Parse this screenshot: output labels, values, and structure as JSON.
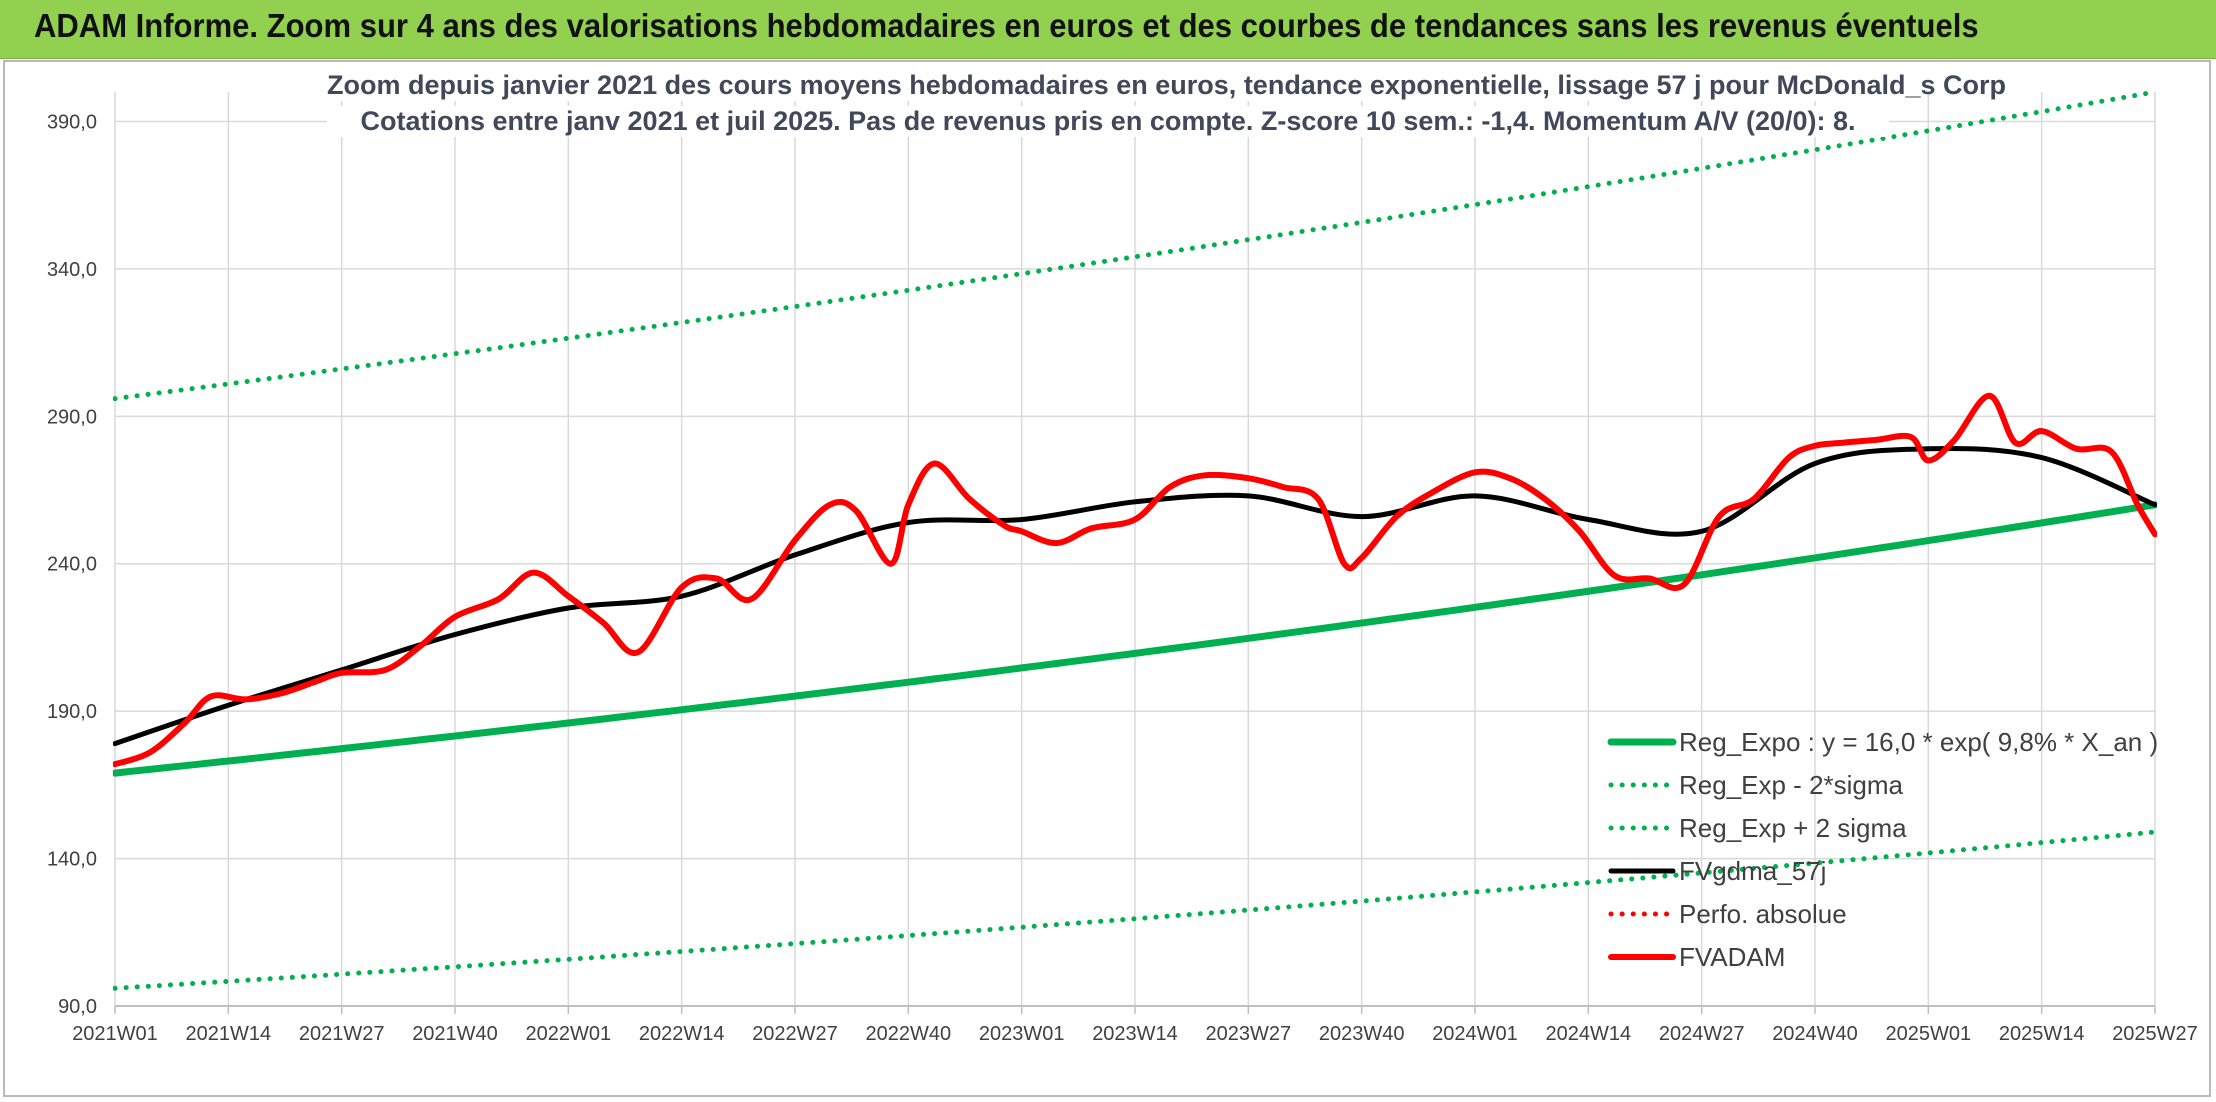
{
  "banner": {
    "title": "ADAM Informe. Zoom sur 4 ans des valorisations hebdomadaires en euros et des courbes de tendances sans les revenus éventuels"
  },
  "colors": {
    "banner_bg": "#92d050",
    "green": "#00b050",
    "black": "#000000",
    "red": "#ff0000",
    "grid": "#d9d9d9"
  },
  "chart_data": {
    "type": "line",
    "title": "Zoom depuis janvier 2021 des cours moyens hebdomadaires en euros, tendance exponentielle, lissage 57 j pour McDonald_s Corp",
    "subtitle": "Cotations entre janv 2021 et juil 2025. Pas de revenus pris en compte. Z-score 10 sem.: -1,4. Momentum A/V (20/0): 8.",
    "xlabel": "",
    "ylabel": "",
    "ylim": [
      90,
      400
    ],
    "y_ticks": [
      90,
      140,
      190,
      240,
      290,
      340,
      390
    ],
    "y_tick_labels": [
      "90,0",
      "140,0",
      "190,0",
      "240,0",
      "290,0",
      "340,0",
      "390,0"
    ],
    "x_range": [
      "2021W01",
      "2025W27"
    ],
    "x_tick_labels": [
      "2021W01",
      "2021W14",
      "2021W27",
      "2021W40",
      "2022W01",
      "2022W14",
      "2022W27",
      "2022W40",
      "2023W01",
      "2023W14",
      "2023W27",
      "2023W40",
      "2024W01",
      "2024W14",
      "2024W27",
      "2024W40",
      "2025W01",
      "2025W14",
      "2025W27"
    ],
    "grid": true,
    "legend_position": "bottom-right",
    "series": [
      {
        "name": "Reg_Expo : y = 16,0 * exp( 9,8% *  X_an )",
        "color": "#00b050",
        "style": "solid",
        "x": [
          "2021W01",
          "2025W27"
        ],
        "values": [
          169,
          260
        ],
        "curve": "exponential"
      },
      {
        "name": "Reg_Exp - 2*sigma",
        "color": "#00b050",
        "style": "dotted",
        "x": [
          "2021W01",
          "2025W27"
        ],
        "values": [
          96,
          149
        ],
        "curve": "exponential"
      },
      {
        "name": "Reg_Exp + 2 sigma",
        "color": "#00b050",
        "style": "dotted",
        "x": [
          "2021W01",
          "2025W27"
        ],
        "values": [
          296,
          400
        ],
        "curve": "exponential"
      },
      {
        "name": "FVgdma_57j",
        "color": "#000000",
        "style": "solid",
        "x": [
          "2021W01",
          "2021W14",
          "2021W27",
          "2021W40",
          "2022W01",
          "2022W14",
          "2022W27",
          "2022W40",
          "2023W01",
          "2023W14",
          "2023W27",
          "2023W40",
          "2024W01",
          "2024W14",
          "2024W27",
          "2024W40",
          "2025W01",
          "2025W14",
          "2025W27"
        ],
        "values": [
          179,
          192,
          204,
          216,
          225,
          229,
          243,
          254,
          255,
          261,
          263,
          256,
          263,
          255,
          251,
          274,
          279,
          276,
          260
        ]
      },
      {
        "name": "Perfo. absolue",
        "color": "#ff0000",
        "style": "dotted",
        "x": [],
        "values": []
      },
      {
        "name": "FVADAM",
        "color": "#ff0000",
        "style": "solid",
        "x": [
          "2021W01",
          "2021W05",
          "2021W09",
          "2021W12",
          "2021W16",
          "2021W20",
          "2021W24",
          "2021W27",
          "2021W32",
          "2021W36",
          "2021W40",
          "2021W45",
          "2021W49",
          "2022W01",
          "2022W05",
          "2022W09",
          "2022W14",
          "2022W18",
          "2022W22",
          "2022W27",
          "2022W31",
          "2022W34",
          "2022W38",
          "2022W40",
          "2022W43",
          "2022W47",
          "2022W51",
          "2023W01",
          "2023W05",
          "2023W09",
          "2023W14",
          "2023W18",
          "2023W22",
          "2023W27",
          "2023W31",
          "2023W35",
          "2023W38",
          "2023W40",
          "2023W44",
          "2023W48",
          "2024W01",
          "2024W05",
          "2024W09",
          "2024W13",
          "2024W17",
          "2024W21",
          "2024W25",
          "2024W29",
          "2024W33",
          "2024W37",
          "2024W40",
          "2024W43",
          "2024W47",
          "2024W51",
          "2025W01",
          "2025W04",
          "2025W08",
          "2025W11",
          "2025W14",
          "2025W18",
          "2025W22",
          "2025W25",
          "2025W27"
        ],
        "values": [
          172,
          176,
          186,
          195,
          194,
          196,
          200,
          203,
          204,
          212,
          222,
          228,
          237,
          229,
          220,
          210,
          232,
          235,
          228,
          248,
          260,
          258,
          240,
          260,
          274,
          262,
          253,
          251,
          247,
          252,
          255,
          266,
          270,
          269,
          266,
          262,
          240,
          242,
          256,
          264,
          271,
          269,
          262,
          251,
          236,
          235,
          233,
          256,
          262,
          276,
          280,
          281,
          282,
          283,
          275,
          282,
          297,
          281,
          285,
          279,
          278,
          260,
          250
        ]
      }
    ]
  }
}
